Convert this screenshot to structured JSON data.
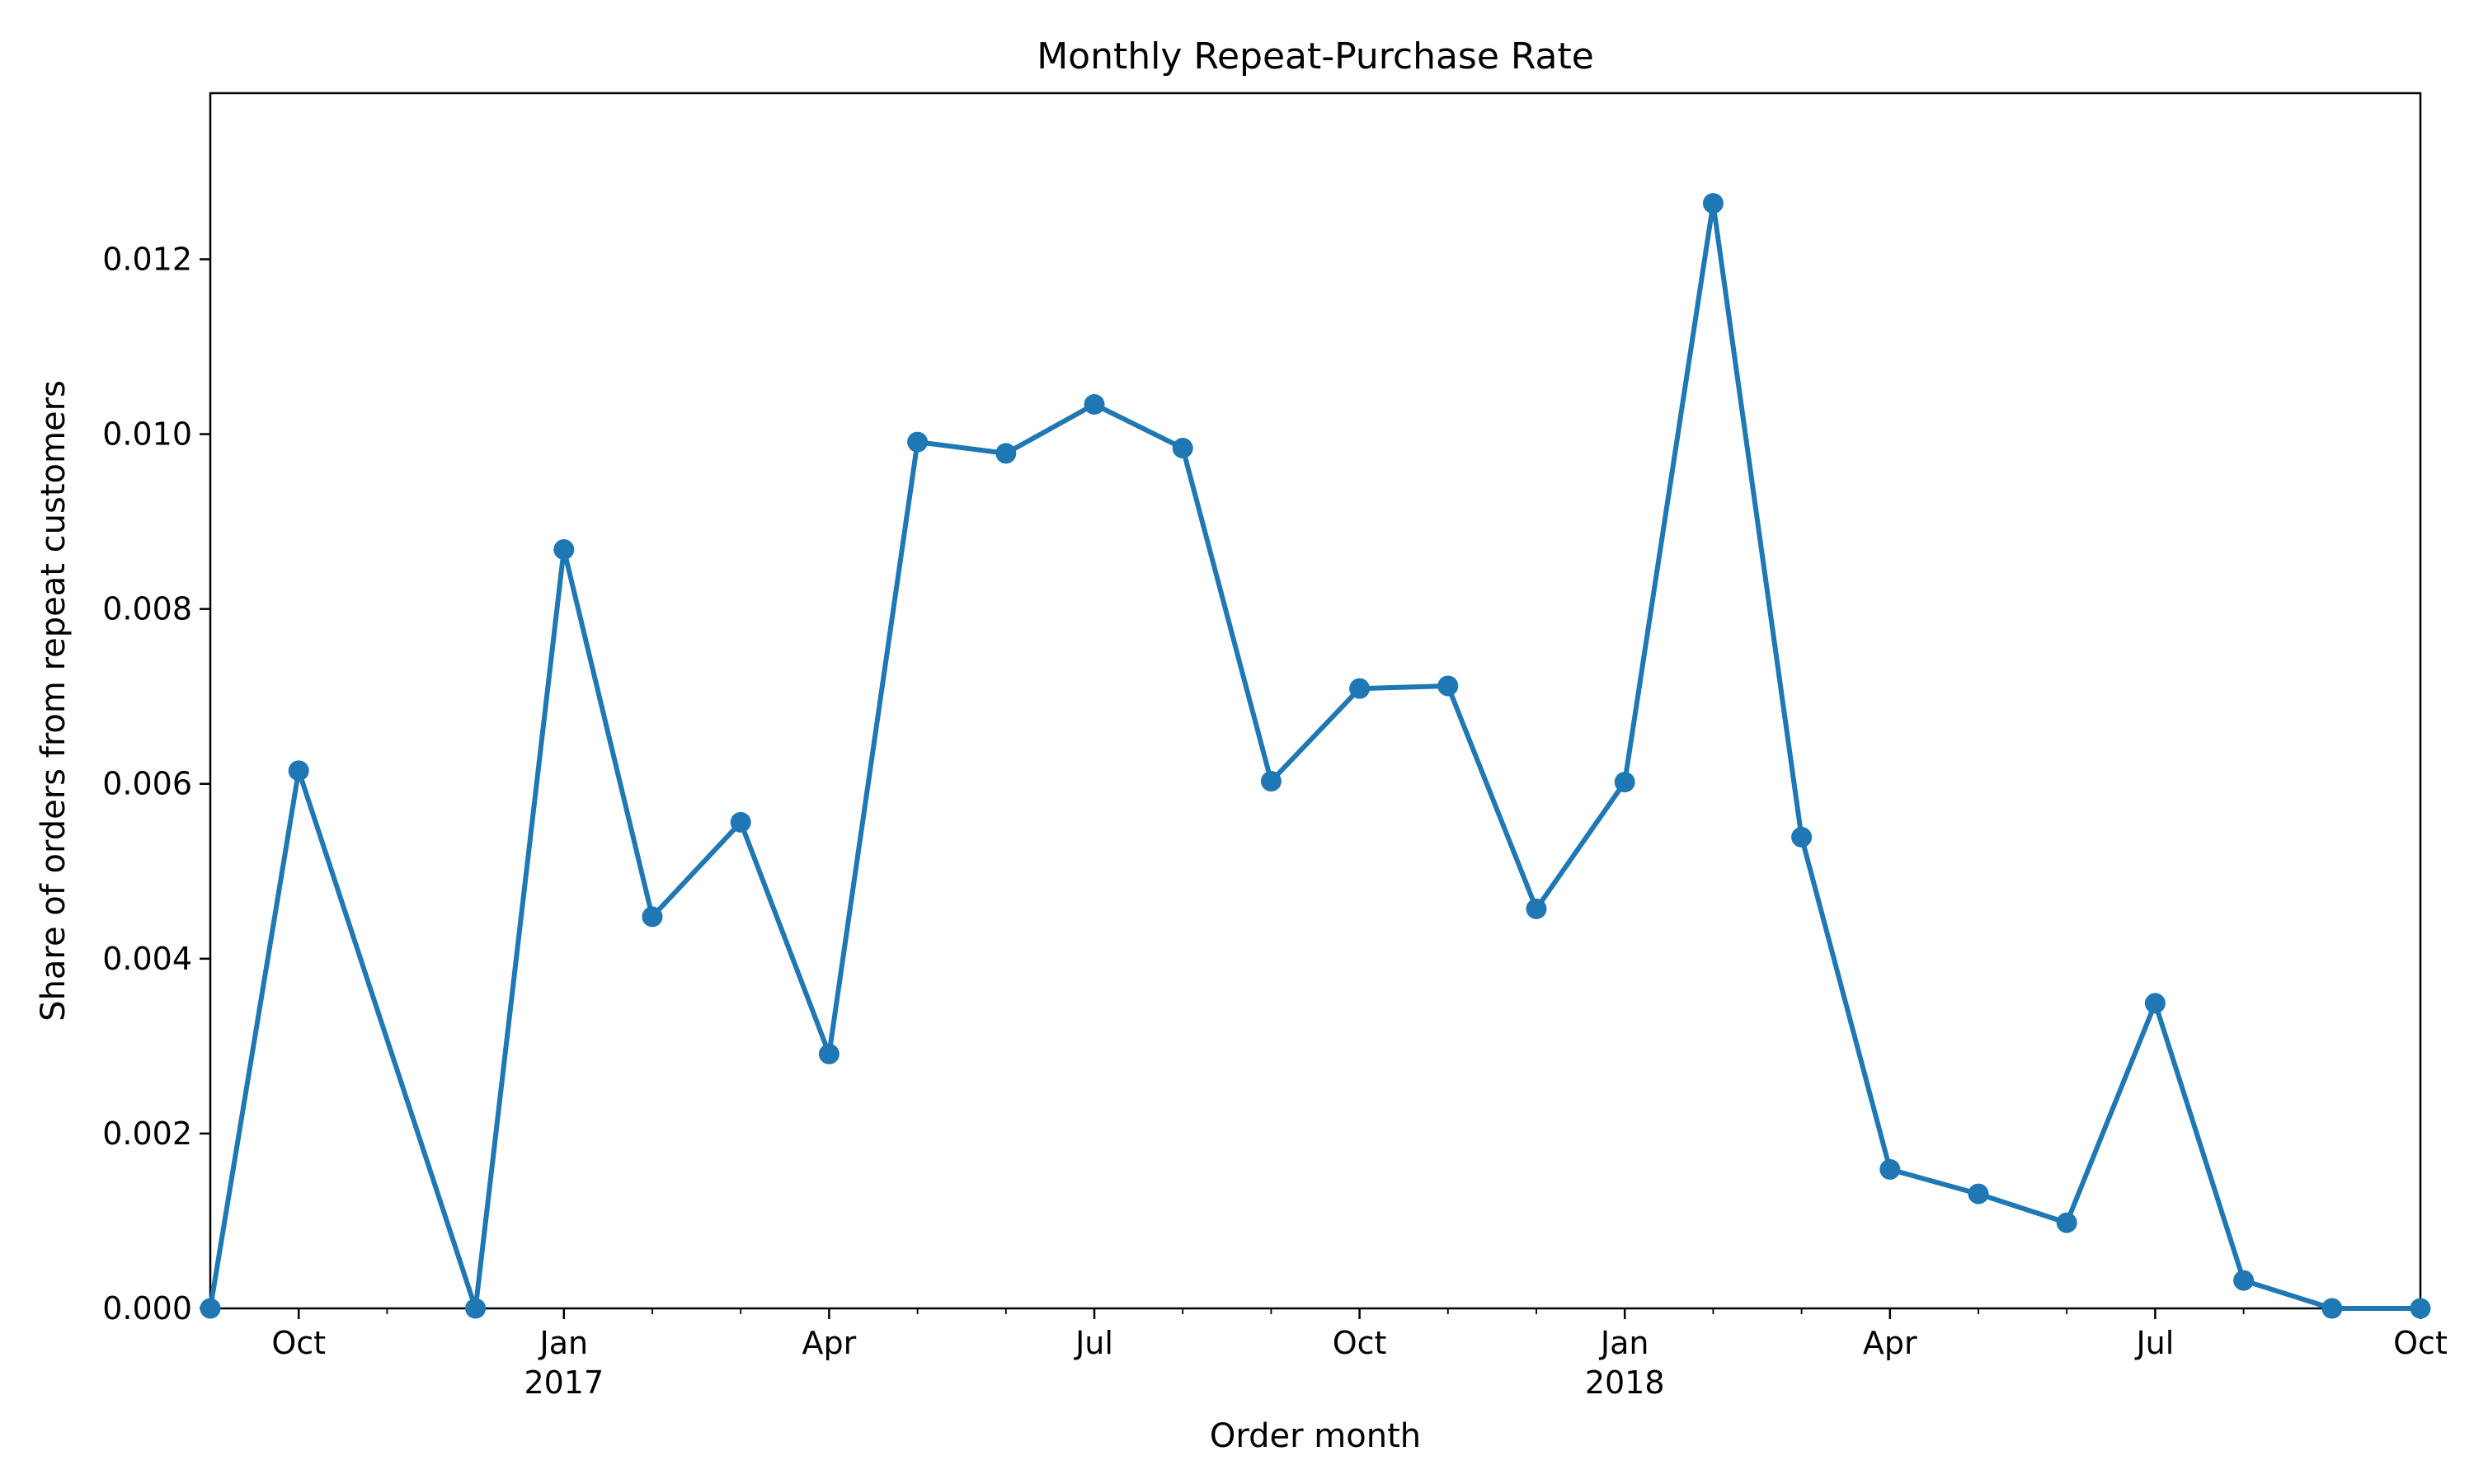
{
  "chart_data": {
    "type": "line",
    "title": "Monthly Repeat-Purchase Rate",
    "xlabel": "Order month",
    "ylabel": "Share of orders from repeat customers",
    "ylim": [
      0,
      0.0139
    ],
    "xlim": [
      "2016-09",
      "2018-10"
    ],
    "grid": false,
    "legend": "none",
    "color": "#1f77b4",
    "y_ticks": [
      {
        "value": 0.0,
        "label": "0.000"
      },
      {
        "value": 0.002,
        "label": "0.002"
      },
      {
        "value": 0.004,
        "label": "0.004"
      },
      {
        "value": 0.006,
        "label": "0.006"
      },
      {
        "value": 0.008,
        "label": "0.008"
      },
      {
        "value": 0.01,
        "label": "0.010"
      },
      {
        "value": 0.012,
        "label": "0.012"
      }
    ],
    "x_ticks": [
      {
        "month": "2016-10",
        "label": "Oct",
        "year": ""
      },
      {
        "month": "2017-01",
        "label": "Jan",
        "year": "2017"
      },
      {
        "month": "2017-04",
        "label": "Apr",
        "year": ""
      },
      {
        "month": "2017-07",
        "label": "Jul",
        "year": ""
      },
      {
        "month": "2017-10",
        "label": "Oct",
        "year": ""
      },
      {
        "month": "2018-01",
        "label": "Jan",
        "year": "2018"
      },
      {
        "month": "2018-04",
        "label": "Apr",
        "year": ""
      },
      {
        "month": "2018-07",
        "label": "Jul",
        "year": ""
      },
      {
        "month": "2018-10",
        "label": "Oct",
        "year": ""
      }
    ],
    "x": [
      "2016-09",
      "2016-10",
      "2016-12",
      "2017-01",
      "2017-02",
      "2017-03",
      "2017-04",
      "2017-05",
      "2017-06",
      "2017-07",
      "2017-08",
      "2017-09",
      "2017-10",
      "2017-11",
      "2017-12",
      "2018-01",
      "2018-02",
      "2018-03",
      "2018-04",
      "2018-05",
      "2018-06",
      "2018-07",
      "2018-08",
      "2018-09",
      "2018-10"
    ],
    "values": [
      0.0,
      0.00615,
      0.0,
      0.00868,
      0.00448,
      0.00556,
      0.00291,
      0.00991,
      0.00978,
      0.01034,
      0.00984,
      0.00603,
      0.00709,
      0.00712,
      0.00457,
      0.00602,
      0.01264,
      0.00539,
      0.00159,
      0.00131,
      0.00098,
      0.00349,
      0.00032,
      0.0,
      0.0
    ]
  }
}
